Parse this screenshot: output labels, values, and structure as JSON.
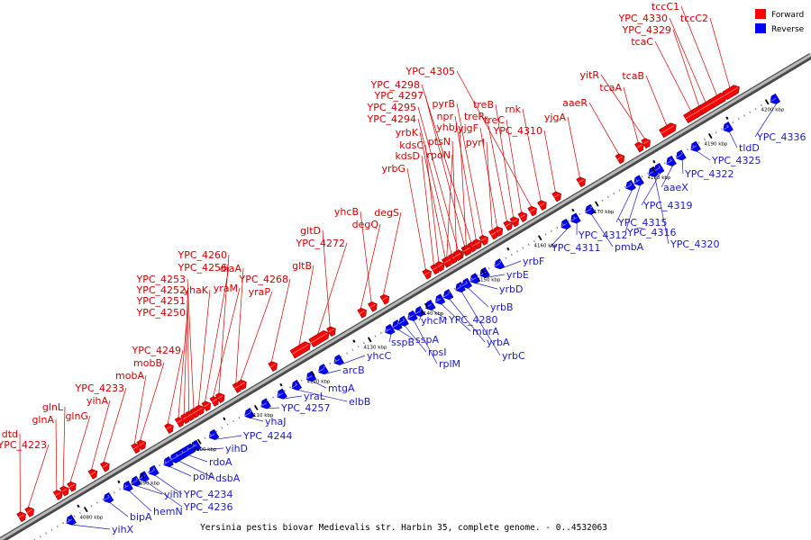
{
  "caption": "Yersinia pestis biovar Medievalis str. Harbin 35, complete genome. - 0..4532063",
  "legend": [
    {
      "label": "Forward",
      "color": "#ff0000"
    },
    {
      "label": "Reverse",
      "color": "#0000ff"
    }
  ],
  "colors": {
    "forward": "#ff0000",
    "reverse": "#0000ff",
    "forward_text": "#d40000",
    "reverse_text": "#1a1acc",
    "backbone": "#808080"
  },
  "ticks": [
    "4080 kbp",
    "4090 kbp",
    "4100 kbp",
    "4110 kbp",
    "4120 kbp",
    "4130 kbp",
    "4140 kbp",
    "4150 kbp",
    "4160 kbp",
    "4170 kbp",
    "4180 kbp",
    "4190 kbp",
    "4200 kbp"
  ],
  "forward_genes": [
    {
      "label": "dtd"
    },
    {
      "label": "YPC_4223"
    },
    {
      "label": "glnA"
    },
    {
      "label": "glnL"
    },
    {
      "label": "glnG"
    },
    {
      "label": "yihA"
    },
    {
      "label": "YPC_4233"
    },
    {
      "label": "mobA"
    },
    {
      "label": "mobB"
    },
    {
      "label": "YPC_4249"
    },
    {
      "label": "YPC_4250"
    },
    {
      "label": "YPC_4251"
    },
    {
      "label": "YPC_4252"
    },
    {
      "label": "YPC_4253"
    },
    {
      "label": "yhaK"
    },
    {
      "label": "YPC_4256"
    },
    {
      "label": "yraM"
    },
    {
      "label": "YPC_4260"
    },
    {
      "label": "diaA"
    },
    {
      "label": "yraP"
    },
    {
      "label": "YPC_4268"
    },
    {
      "label": "gltB"
    },
    {
      "label": "YPC_4272"
    },
    {
      "label": "gltD"
    },
    {
      "label": "degQ"
    },
    {
      "label": "yhcB"
    },
    {
      "label": "degS"
    },
    {
      "label": "yrbG"
    },
    {
      "label": "kdsD"
    },
    {
      "label": "kdsC"
    },
    {
      "label": "yrbK"
    },
    {
      "label": "YPC_4294"
    },
    {
      "label": "YPC_4295"
    },
    {
      "label": "YPC_4297"
    },
    {
      "label": "YPC_4298"
    },
    {
      "label": "rpoN"
    },
    {
      "label": "ptsN"
    },
    {
      "label": "yhbJ"
    },
    {
      "label": "npr"
    },
    {
      "label": "pyrB"
    },
    {
      "label": "pyrI"
    },
    {
      "label": "yjgF"
    },
    {
      "label": "treR"
    },
    {
      "label": "treB"
    },
    {
      "label": "treC"
    },
    {
      "label": "YPC_4305"
    },
    {
      "label": "rnk"
    },
    {
      "label": "YPC_4310"
    },
    {
      "label": "yjgA"
    },
    {
      "label": "aaeR"
    },
    {
      "label": "tcaA"
    },
    {
      "label": "yitR"
    },
    {
      "label": "tcaB"
    },
    {
      "label": "tcaC"
    },
    {
      "label": "YPC_4329"
    },
    {
      "label": "YPC_4330"
    },
    {
      "label": "tccC1"
    },
    {
      "label": "tccC2"
    }
  ],
  "reverse_genes": [
    {
      "label": "yihX"
    },
    {
      "label": "bipA"
    },
    {
      "label": "hemN"
    },
    {
      "label": "yihI"
    },
    {
      "label": "YPC_4236"
    },
    {
      "label": "YPC_4234"
    },
    {
      "label": "polA"
    },
    {
      "label": "dsbA"
    },
    {
      "label": "rdoA"
    },
    {
      "label": "yihD"
    },
    {
      "label": "YPC_4244"
    },
    {
      "label": "yhaJ"
    },
    {
      "label": "YPC_4257"
    },
    {
      "label": "yraL"
    },
    {
      "label": "elbB"
    },
    {
      "label": "mtgA"
    },
    {
      "label": "arcB"
    },
    {
      "label": "yhcC"
    },
    {
      "label": "sspB"
    },
    {
      "label": "sspA"
    },
    {
      "label": "rpsI"
    },
    {
      "label": "rplM"
    },
    {
      "label": "yhcM"
    },
    {
      "label": "YPC_4280"
    },
    {
      "label": "murA"
    },
    {
      "label": "yrbA"
    },
    {
      "label": "yrbC"
    },
    {
      "label": "yrbB"
    },
    {
      "label": "yrbD"
    },
    {
      "label": "yrbE"
    },
    {
      "label": "yrbF"
    },
    {
      "label": "YPC_4311"
    },
    {
      "label": "YPC_4312"
    },
    {
      "label": "pmbA"
    },
    {
      "label": "YPC_4315"
    },
    {
      "label": "YPC_4316"
    },
    {
      "label": "YPC_4320"
    },
    {
      "label": "YPC_4319"
    },
    {
      "label": "aaeX"
    },
    {
      "label": "YPC_4322"
    },
    {
      "label": "YPC_4325"
    },
    {
      "label": "tldD"
    },
    {
      "label": "YPC_4336"
    }
  ]
}
